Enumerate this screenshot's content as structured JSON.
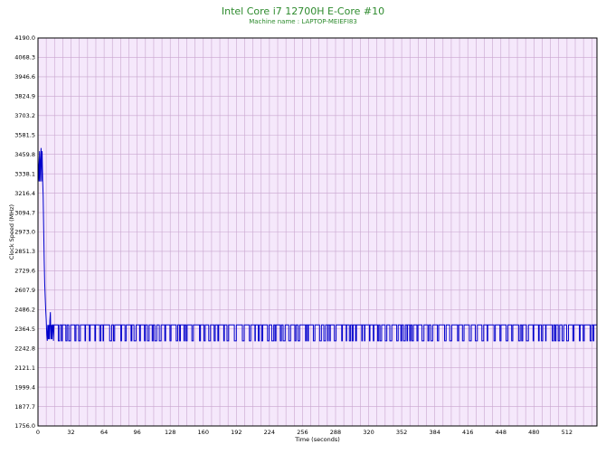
{
  "chart_data": {
    "type": "line",
    "title": "Intel Core i7 12700H E-Core #10",
    "subtitle": "Machine name : LAPTOP-MEIEFI83",
    "xlabel": "Time (seconds)",
    "ylabel": "Clock Speed (MHz)",
    "xlim": [
      0,
      541
    ],
    "ylim": [
      1756.0,
      4190.0
    ],
    "x_ticks": [
      0,
      32,
      64,
      96,
      128,
      160,
      192,
      224,
      256,
      288,
      320,
      352,
      384,
      416,
      448,
      480,
      512
    ],
    "y_ticks": [
      "1756.0",
      "1877.7",
      "1999.4",
      "2121.1",
      "2242.8",
      "2364.5",
      "2486.2",
      "2607.9",
      "2729.6",
      "2851.3",
      "2973.0",
      "3094.7",
      "3216.4",
      "3338.1",
      "3459.8",
      "3581.5",
      "3703.2",
      "3824.9",
      "3946.6",
      "4068.3",
      "4190.0"
    ],
    "grid": true,
    "legend": "none",
    "series": [
      {
        "color": "#0000cc",
        "high_value": 2390,
        "low_value": 2290,
        "x": [
          0,
          0.5,
          1.0,
          1.5,
          2.0,
          2.5,
          3.0,
          3.5,
          4.0,
          4.5,
          5.0,
          5.5,
          6.0,
          6.5,
          7.0,
          7.5,
          8.0,
          8.5,
          9.0,
          9.5,
          10.0,
          10.5,
          11.0,
          11.5,
          12.0,
          12.5,
          13.0,
          13.5,
          14.0,
          14.5,
          15.0,
          15.5,
          16.0
        ],
        "y": [
          3450,
          3380,
          3290,
          3480,
          3290,
          3420,
          3500,
          3290,
          3480,
          3300,
          3200,
          3000,
          2800,
          2650,
          2560,
          2480,
          2420,
          2330,
          2290,
          2390,
          2300,
          2390,
          2300,
          2420,
          2470,
          2300,
          2390,
          2300,
          2390,
          2390,
          2290,
          2390,
          2390
        ],
        "anomalies": [
          {
            "x": 421,
            "y": 2200
          },
          {
            "x": 420,
            "y": 2290
          }
        ]
      }
    ]
  },
  "colors": {
    "plot_bg": "#f5e8fb",
    "grid": "#c9a6cf",
    "line": "#0000cc",
    "title": "#2e8b2e"
  }
}
